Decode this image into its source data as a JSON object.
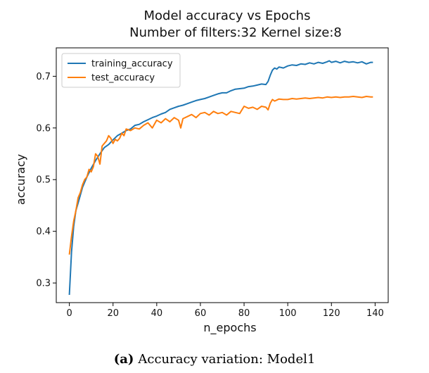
{
  "chart_data": {
    "type": "line",
    "title": "Model accuracy vs Epochs",
    "subtitle": "Number of filters:32 Kernel size:8",
    "xlabel": "n_epochs",
    "ylabel": "accuracy",
    "xlim": [
      -6,
      146
    ],
    "ylim": [
      0.262,
      0.755
    ],
    "xticks": [
      0,
      20,
      40,
      60,
      80,
      100,
      120,
      140
    ],
    "yticks": [
      0.3,
      0.4,
      0.5,
      0.6,
      0.7
    ],
    "ytick_labels": [
      "0.3",
      "0.4",
      "0.5",
      "0.6",
      "0.7"
    ],
    "legend_position": "top-left",
    "grid": false,
    "series": [
      {
        "name": "training_accuracy",
        "color": "#1f77b4",
        "x": [
          0,
          1,
          2,
          3,
          4,
          5,
          6,
          7,
          8,
          10,
          12,
          14,
          16,
          18,
          20,
          22,
          24,
          26,
          28,
          30,
          32,
          34,
          36,
          38,
          40,
          42,
          44,
          46,
          48,
          50,
          52,
          54,
          56,
          58,
          60,
          62,
          64,
          66,
          68,
          70,
          72,
          74,
          76,
          78,
          80,
          82,
          84,
          86,
          88,
          90,
          91,
          92,
          93,
          94,
          95,
          96,
          98,
          100,
          102,
          104,
          106,
          108,
          110,
          112,
          114,
          116,
          118,
          119,
          120,
          122,
          124,
          126,
          128,
          130,
          132,
          134,
          136,
          138,
          139
        ],
        "values": [
          0.277,
          0.36,
          0.41,
          0.44,
          0.455,
          0.47,
          0.485,
          0.495,
          0.505,
          0.522,
          0.537,
          0.55,
          0.562,
          0.568,
          0.577,
          0.585,
          0.59,
          0.595,
          0.598,
          0.605,
          0.607,
          0.612,
          0.616,
          0.62,
          0.623,
          0.627,
          0.63,
          0.636,
          0.639,
          0.642,
          0.644,
          0.647,
          0.65,
          0.653,
          0.655,
          0.657,
          0.66,
          0.663,
          0.666,
          0.668,
          0.668,
          0.672,
          0.675,
          0.676,
          0.677,
          0.68,
          0.681,
          0.683,
          0.685,
          0.684,
          0.69,
          0.702,
          0.712,
          0.716,
          0.714,
          0.718,
          0.716,
          0.72,
          0.722,
          0.721,
          0.724,
          0.723,
          0.726,
          0.724,
          0.727,
          0.725,
          0.728,
          0.73,
          0.727,
          0.729,
          0.726,
          0.729,
          0.727,
          0.728,
          0.726,
          0.728,
          0.724,
          0.727,
          0.727
        ]
      },
      {
        "name": "test_accuracy",
        "color": "#ff7f0e",
        "x": [
          0,
          1,
          2,
          3,
          4,
          5,
          6,
          7,
          8,
          9,
          10,
          11,
          12,
          13,
          14,
          15,
          16,
          17,
          18,
          19,
          20,
          21,
          22,
          23,
          24,
          25,
          26,
          28,
          30,
          32,
          34,
          36,
          38,
          40,
          42,
          44,
          46,
          48,
          50,
          51,
          52,
          54,
          56,
          58,
          60,
          62,
          64,
          66,
          68,
          70,
          72,
          74,
          76,
          78,
          80,
          82,
          84,
          86,
          88,
          90,
          91,
          92,
          93,
          94,
          96,
          98,
          100,
          102,
          104,
          106,
          108,
          110,
          112,
          114,
          116,
          118,
          120,
          122,
          124,
          126,
          128,
          130,
          132,
          134,
          136,
          138,
          139
        ],
        "values": [
          0.355,
          0.39,
          0.42,
          0.44,
          0.465,
          0.475,
          0.49,
          0.5,
          0.505,
          0.52,
          0.515,
          0.525,
          0.55,
          0.545,
          0.53,
          0.565,
          0.57,
          0.575,
          0.585,
          0.58,
          0.57,
          0.578,
          0.575,
          0.58,
          0.59,
          0.585,
          0.598,
          0.595,
          0.6,
          0.598,
          0.605,
          0.61,
          0.6,
          0.615,
          0.61,
          0.618,
          0.612,
          0.62,
          0.615,
          0.6,
          0.618,
          0.622,
          0.626,
          0.62,
          0.628,
          0.63,
          0.625,
          0.632,
          0.628,
          0.63,
          0.625,
          0.632,
          0.63,
          0.628,
          0.642,
          0.638,
          0.64,
          0.636,
          0.642,
          0.64,
          0.635,
          0.648,
          0.655,
          0.652,
          0.656,
          0.655,
          0.655,
          0.657,
          0.656,
          0.657,
          0.658,
          0.657,
          0.658,
          0.659,
          0.658,
          0.66,
          0.659,
          0.66,
          0.659,
          0.66,
          0.66,
          0.661,
          0.66,
          0.659,
          0.661,
          0.66,
          0.66
        ]
      }
    ]
  },
  "caption": {
    "label": "(a)",
    "text": "Accuracy variation: Model1"
  }
}
